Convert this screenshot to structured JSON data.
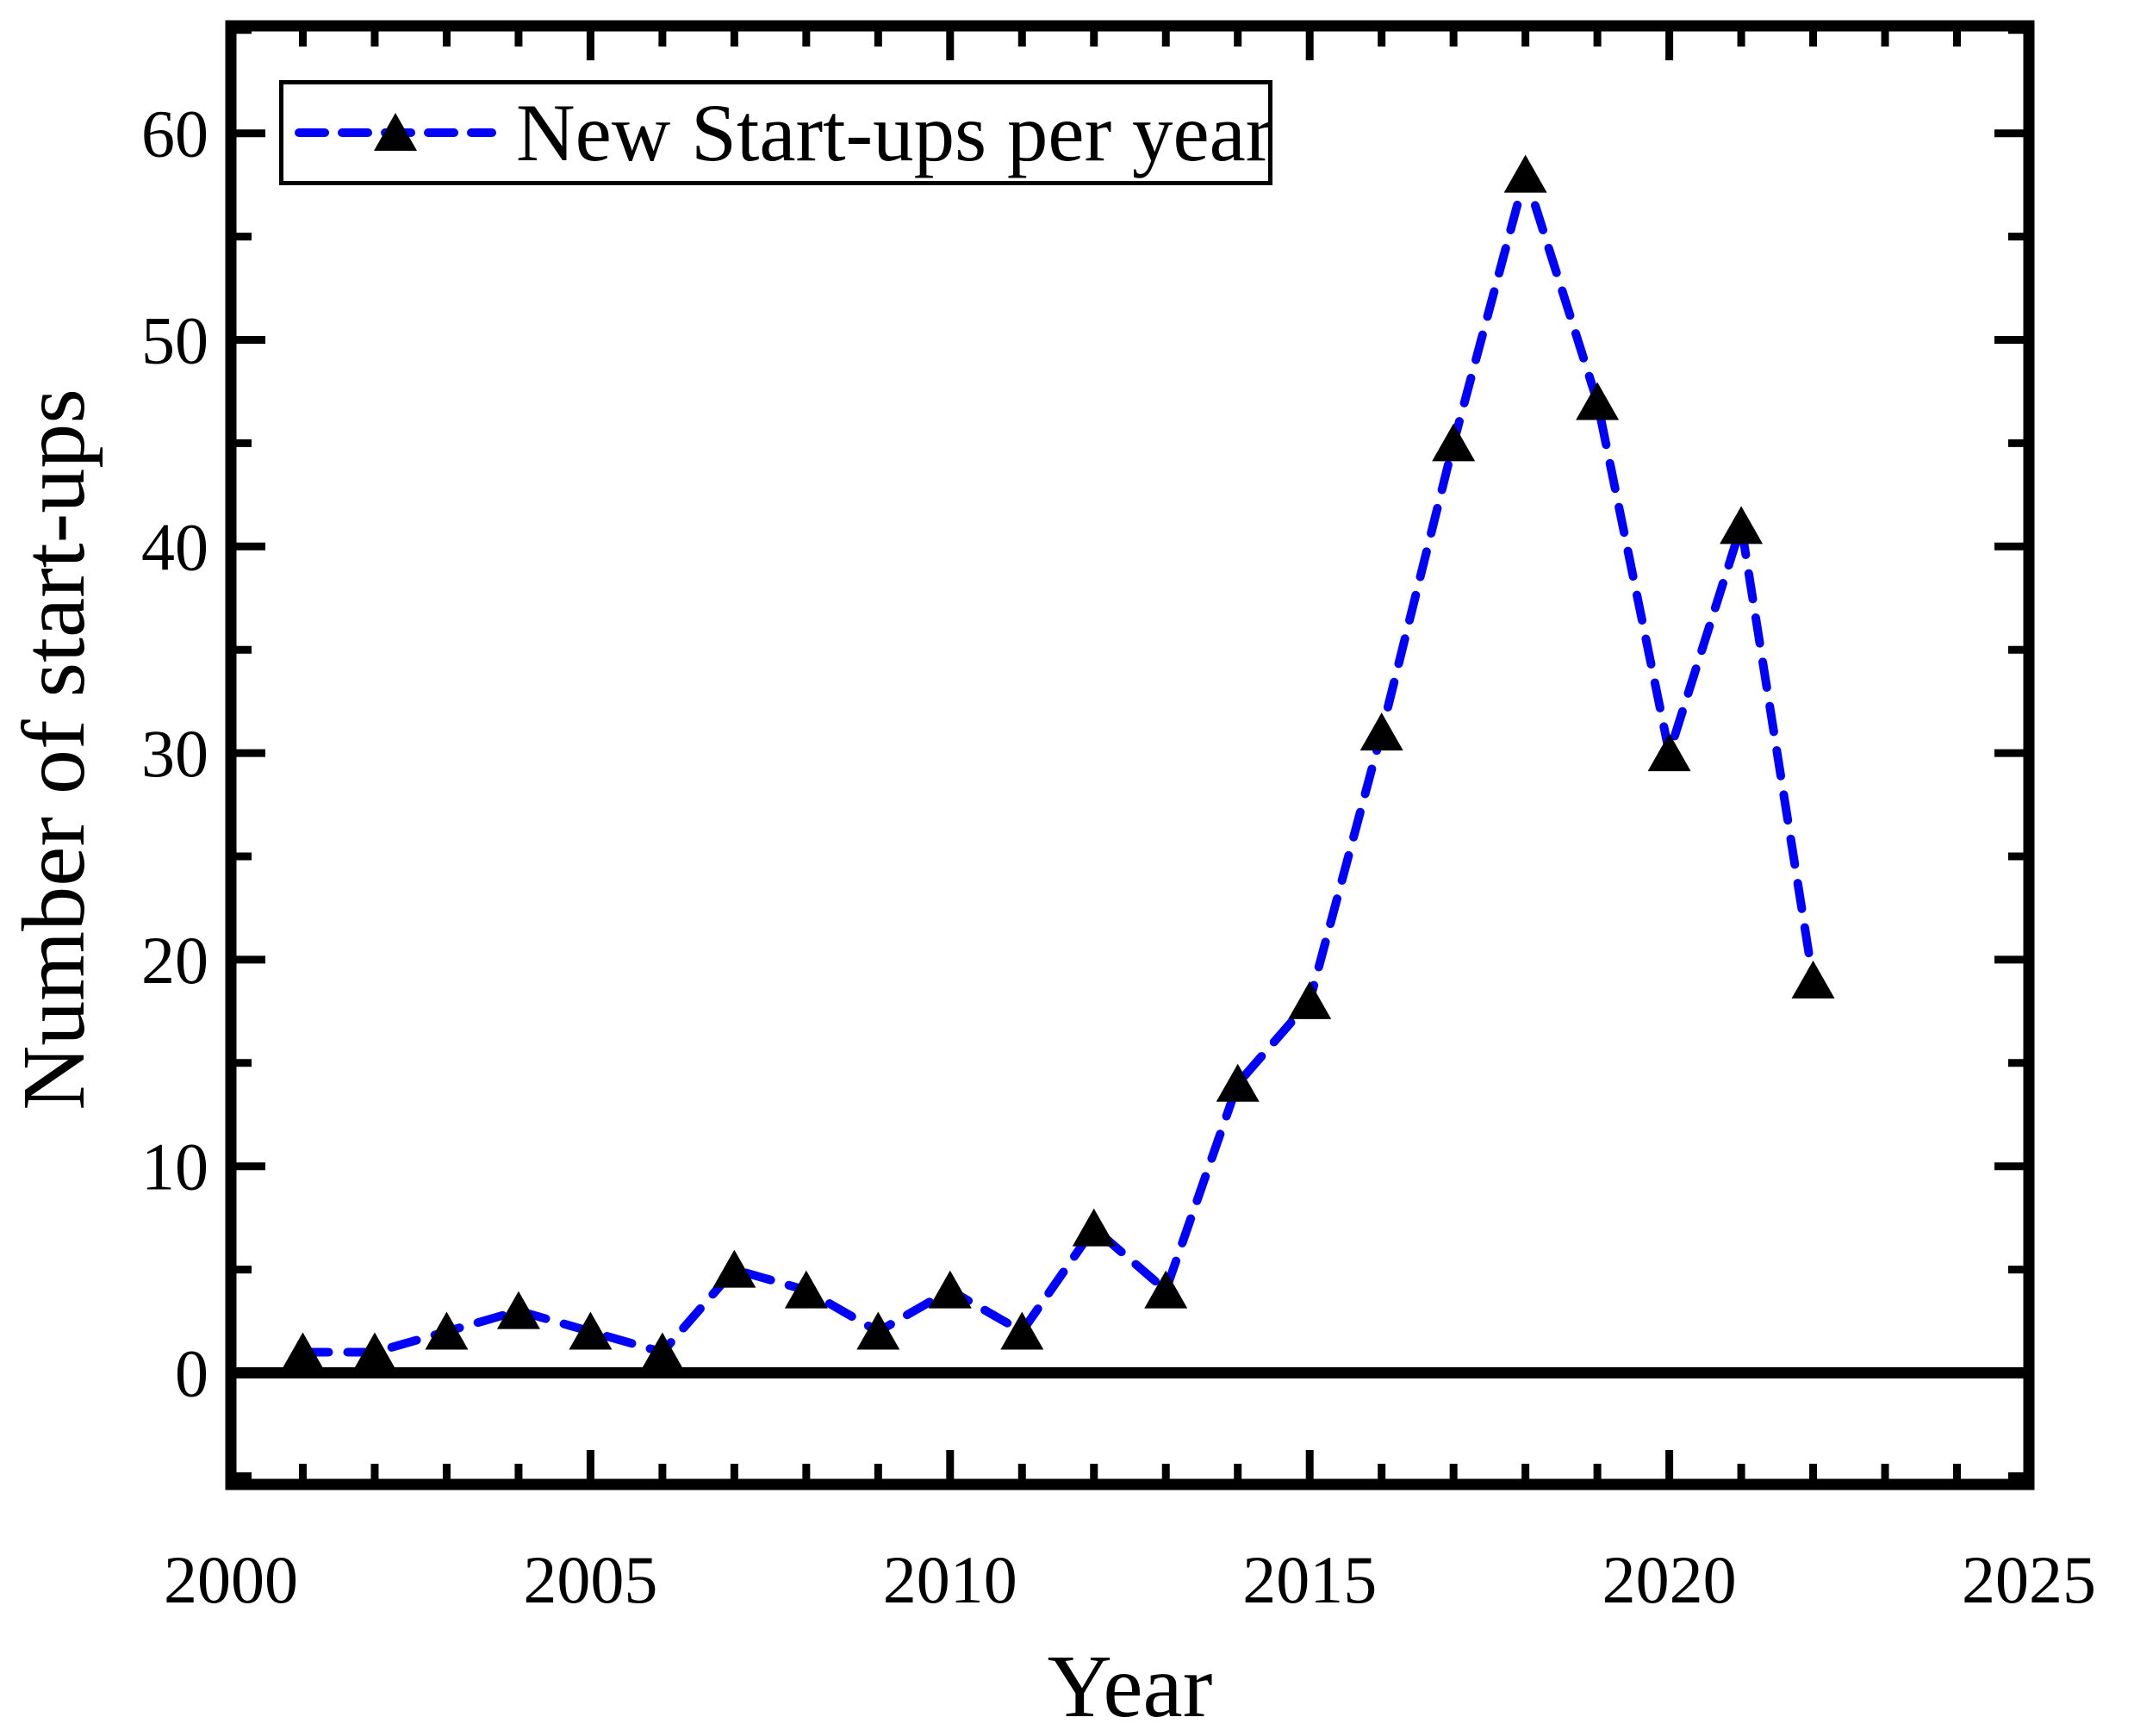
{
  "chart_data": {
    "type": "line",
    "title": "",
    "xlabel": "Year",
    "ylabel": "Number of start-ups",
    "legend": [
      "New Start-ups per year"
    ],
    "legend_position": "top-left",
    "x": [
      2001,
      2002,
      2003,
      2004,
      2005,
      2006,
      2007,
      2008,
      2009,
      2010,
      2011,
      2012,
      2013,
      2014,
      2015,
      2016,
      2017,
      2018,
      2019,
      2020,
      2021,
      2022
    ],
    "series": [
      {
        "name": "New Start-ups per year",
        "values": [
          1,
          1,
          2,
          3,
          2,
          1,
          5,
          4,
          2,
          4,
          2,
          7,
          4,
          14,
          18,
          31,
          45,
          58,
          47,
          30,
          41,
          19
        ]
      }
    ],
    "xlim": [
      2000,
      2025
    ],
    "ylim": [
      -5.4,
      65.2
    ],
    "x_major_ticks": [
      2000,
      2005,
      2010,
      2015,
      2020,
      2025
    ],
    "x_minor_step": 1,
    "y_major_ticks": [
      0,
      10,
      20,
      30,
      40,
      50,
      60
    ],
    "y_minor_ticks": [
      -5,
      5,
      15,
      25,
      35,
      45,
      55,
      65
    ],
    "grid": false,
    "zero_line": true,
    "line_style": "dashed",
    "marker": "triangle-up",
    "colors": {
      "line": "#0000ff",
      "marker": "#000000",
      "frame": "#000000",
      "text": "#000000",
      "background": "#ffffff"
    }
  }
}
